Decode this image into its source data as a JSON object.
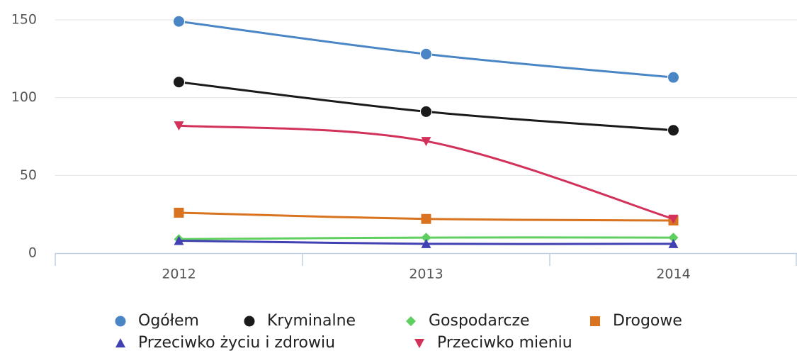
{
  "chart_data": {
    "type": "line",
    "categories": [
      "2012",
      "2013",
      "2014"
    ],
    "series": [
      {
        "name": "Ogółem",
        "color": "#4a86c5",
        "marker": "circle",
        "values": [
          149,
          128,
          113
        ]
      },
      {
        "name": "Kryminalne",
        "color": "#1a1a1a",
        "marker": "circle",
        "values": [
          110,
          91,
          79
        ]
      },
      {
        "name": "Gospodarcze",
        "color": "#5fcf5f",
        "marker": "diamond",
        "values": [
          9,
          10,
          10
        ]
      },
      {
        "name": "Drogowe",
        "color": "#d9731f",
        "marker": "square",
        "values": [
          26,
          22,
          21
        ]
      },
      {
        "name": "Przeciwko życiu i zdrowiu",
        "color": "#4141b4",
        "marker": "triangle",
        "values": [
          8,
          6,
          6
        ]
      },
      {
        "name": "Przeciwko mieniu",
        "color": "#d2325a",
        "marker": "triangle-down",
        "values": [
          82,
          72,
          22
        ]
      }
    ],
    "ylim": [
      0,
      150
    ],
    "yticks": [
      0,
      50,
      100,
      150
    ],
    "grid": true,
    "legend": "bottom"
  }
}
